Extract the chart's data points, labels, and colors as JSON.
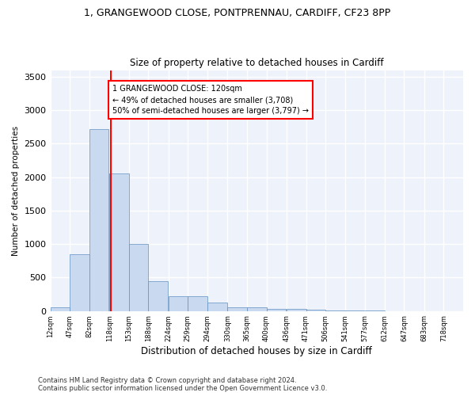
{
  "title_line1": "1, GRANGEWOOD CLOSE, PONTPRENNAU, CARDIFF, CF23 8PP",
  "title_line2": "Size of property relative to detached houses in Cardiff",
  "xlabel": "Distribution of detached houses by size in Cardiff",
  "ylabel": "Number of detached properties",
  "bin_edges": [
    12,
    47,
    82,
    118,
    153,
    188,
    224,
    259,
    294,
    330,
    365,
    400,
    436,
    471,
    506,
    541,
    577,
    612,
    647,
    683,
    718
  ],
  "bar_heights": [
    60,
    850,
    2720,
    2060,
    1000,
    450,
    220,
    220,
    130,
    60,
    55,
    30,
    25,
    20,
    5,
    2,
    1,
    0,
    0,
    0,
    0
  ],
  "bar_color": "#c9d9f0",
  "bar_edge_color": "#6090c0",
  "vline_x": 120,
  "vline_color": "red",
  "annotation_text": "1 GRANGEWOOD CLOSE: 120sqm\n← 49% of detached houses are smaller (3,708)\n50% of semi-detached houses are larger (3,797) →",
  "annotation_box_color": "white",
  "annotation_box_edge_color": "red",
  "ylim": [
    0,
    3600
  ],
  "yticks": [
    0,
    500,
    1000,
    1500,
    2000,
    2500,
    3000,
    3500
  ],
  "tick_labels": [
    "12sqm",
    "47sqm",
    "82sqm",
    "118sqm",
    "153sqm",
    "188sqm",
    "224sqm",
    "259sqm",
    "294sqm",
    "330sqm",
    "365sqm",
    "400sqm",
    "436sqm",
    "471sqm",
    "506sqm",
    "541sqm",
    "577sqm",
    "612sqm",
    "647sqm",
    "683sqm",
    "718sqm"
  ],
  "footer_text": "Contains HM Land Registry data © Crown copyright and database right 2024.\nContains public sector information licensed under the Open Government Licence v3.0.",
  "bg_color": "#eef2fb",
  "grid_color": "#ffffff",
  "fig_bg_color": "#ffffff",
  "title_fontsize": 9,
  "subtitle_fontsize": 8.5,
  "xlabel_fontsize": 8.5,
  "ylabel_fontsize": 7.5,
  "ytick_fontsize": 8,
  "xtick_fontsize": 6
}
